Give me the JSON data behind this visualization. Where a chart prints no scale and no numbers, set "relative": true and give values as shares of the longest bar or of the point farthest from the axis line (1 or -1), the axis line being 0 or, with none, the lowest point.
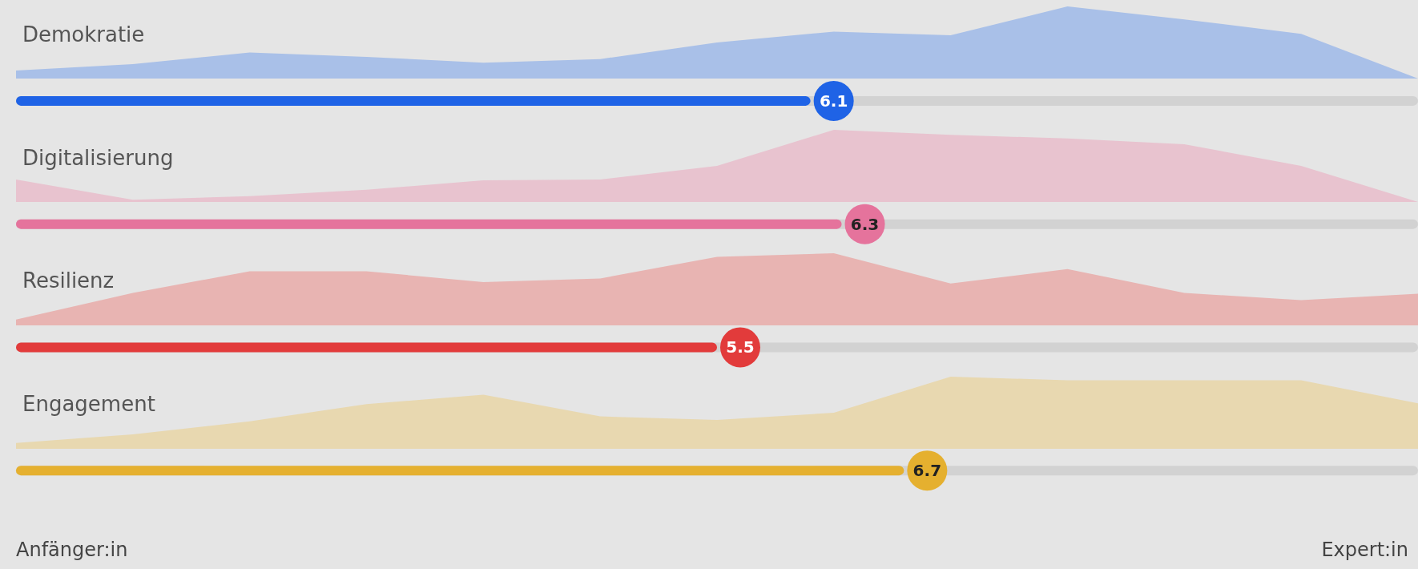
{
  "chart_data": [
    {
      "type": "bar",
      "orientation": "horizontal",
      "categories": [
        "Demokratie",
        "Digitalisierung",
        "Resilienz",
        "Engagement"
      ],
      "values": [
        6.1,
        6.3,
        5.5,
        6.7
      ],
      "colors": [
        "#1f63e6",
        "#e5739c",
        "#e23b3b",
        "#e5b02f"
      ],
      "data_labels": true,
      "xlim": [
        1,
        10
      ],
      "tick_labels": "y",
      "annotations": [
        "Anfänger:in",
        "Expert:in"
      ]
    },
    {
      "type": "area",
      "relative": true,
      "color": "#a9c0e8",
      "tick_labels": false,
      "categories": [
        null,
        null,
        null,
        null,
        null,
        null,
        null,
        null,
        null,
        null,
        null,
        null,
        null
      ],
      "values": [
        0.11,
        0.2,
        0.36,
        0.3,
        0.22,
        0.27,
        0.5,
        0.65,
        0.6,
        1,
        0.82,
        0.62,
        0
      ]
    },
    {
      "type": "area",
      "relative": true,
      "color": "#e8c3cf",
      "tick_labels": false,
      "categories": [
        null,
        null,
        null,
        null,
        null,
        null,
        null,
        null,
        null,
        null,
        null,
        null,
        null
      ],
      "values": [
        0.31,
        0.03,
        0.08,
        0.17,
        0.3,
        0.31,
        0.5,
        1,
        0.93,
        0.88,
        0.8,
        0.5,
        0
      ]
    },
    {
      "type": "area",
      "relative": true,
      "color": "#e8b4b2",
      "tick_labels": false,
      "categories": [
        null,
        null,
        null,
        null,
        null,
        null,
        null,
        null,
        null,
        null,
        null,
        null,
        null
      ],
      "values": [
        0.08,
        0.45,
        0.75,
        0.75,
        0.6,
        0.65,
        0.95,
        1,
        0.58,
        0.78,
        0.45,
        0.35,
        0.44
      ]
    },
    {
      "type": "area",
      "relative": true,
      "color": "#e8d8b0",
      "tick_labels": false,
      "categories": [
        null,
        null,
        null,
        null,
        null,
        null,
        null,
        null,
        null,
        null,
        null,
        null,
        null
      ],
      "values": [
        0.08,
        0.2,
        0.38,
        0.62,
        0.75,
        0.45,
        0.4,
        0.5,
        1,
        0.95,
        0.95,
        0.95,
        0.63
      ]
    }
  ]
}
